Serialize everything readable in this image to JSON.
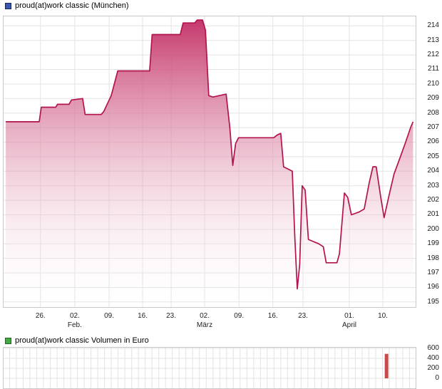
{
  "chart_data": [
    {
      "type": "area",
      "name": "price",
      "title": "proud(at)work classic (München)",
      "legend": {
        "fill": "#3c58a8",
        "border": "#16255e"
      },
      "line_color": "#b3134e",
      "fill_top_color": "#c43267",
      "ylabel": "",
      "xlabel": "",
      "ylim": [
        194.6,
        214.7
      ],
      "y_ticks": [
        195,
        196,
        197,
        198,
        199,
        200,
        201,
        202,
        203,
        204,
        205,
        206,
        207,
        208,
        209,
        210,
        211,
        212,
        213,
        214
      ],
      "x_ticks": [
        {
          "pos": 0.091,
          "label": "26.",
          "sub": ""
        },
        {
          "pos": 0.174,
          "label": "02.",
          "sub": "Feb."
        },
        {
          "pos": 0.257,
          "label": "09.",
          "sub": ""
        },
        {
          "pos": 0.338,
          "label": "16.",
          "sub": ""
        },
        {
          "pos": 0.407,
          "label": "23.",
          "sub": ""
        },
        {
          "pos": 0.488,
          "label": "02.",
          "sub": "März"
        },
        {
          "pos": 0.571,
          "label": "09.",
          "sub": ""
        },
        {
          "pos": 0.653,
          "label": "16.",
          "sub": ""
        },
        {
          "pos": 0.726,
          "label": "23.",
          "sub": ""
        },
        {
          "pos": 0.838,
          "label": "01.",
          "sub": "April"
        },
        {
          "pos": 0.919,
          "label": "10.",
          "sub": ""
        }
      ],
      "points": [
        [
          0.007,
          207.4
        ],
        [
          0.088,
          207.4
        ],
        [
          0.093,
          208.4
        ],
        [
          0.128,
          208.4
        ],
        [
          0.132,
          208.6
        ],
        [
          0.16,
          208.6
        ],
        [
          0.166,
          208.9
        ],
        [
          0.193,
          209.0
        ],
        [
          0.199,
          207.9
        ],
        [
          0.238,
          207.9
        ],
        [
          0.244,
          208.1
        ],
        [
          0.262,
          209.2
        ],
        [
          0.278,
          210.9
        ],
        [
          0.355,
          210.9
        ],
        [
          0.361,
          213.4
        ],
        [
          0.429,
          213.4
        ],
        [
          0.436,
          214.2
        ],
        [
          0.464,
          214.2
        ],
        [
          0.47,
          214.4
        ],
        [
          0.483,
          214.4
        ],
        [
          0.49,
          213.7
        ],
        [
          0.498,
          209.2
        ],
        [
          0.508,
          209.1
        ],
        [
          0.54,
          209.3
        ],
        [
          0.549,
          207.0
        ],
        [
          0.556,
          204.4
        ],
        [
          0.563,
          205.9
        ],
        [
          0.57,
          206.3
        ],
        [
          0.655,
          206.3
        ],
        [
          0.664,
          206.5
        ],
        [
          0.672,
          206.6
        ],
        [
          0.679,
          204.3
        ],
        [
          0.7,
          204.0
        ],
        [
          0.706,
          199.5
        ],
        [
          0.712,
          195.9
        ],
        [
          0.718,
          197.6
        ],
        [
          0.724,
          203.0
        ],
        [
          0.731,
          202.7
        ],
        [
          0.739,
          199.3
        ],
        [
          0.764,
          199.0
        ],
        [
          0.775,
          198.8
        ],
        [
          0.782,
          197.7
        ],
        [
          0.808,
          197.7
        ],
        [
          0.814,
          198.3
        ],
        [
          0.826,
          202.5
        ],
        [
          0.834,
          202.2
        ],
        [
          0.843,
          201.0
        ],
        [
          0.862,
          201.2
        ],
        [
          0.874,
          201.4
        ],
        [
          0.886,
          203.2
        ],
        [
          0.895,
          204.3
        ],
        [
          0.903,
          204.3
        ],
        [
          0.914,
          202.2
        ],
        [
          0.922,
          200.8
        ],
        [
          0.933,
          202.2
        ],
        [
          0.946,
          203.8
        ],
        [
          0.959,
          204.8
        ],
        [
          0.973,
          205.9
        ],
        [
          0.986,
          207.0
        ],
        [
          0.992,
          207.4
        ]
      ]
    },
    {
      "type": "bar",
      "name": "volume",
      "title": "proud(at)work classic Volumen in Euro",
      "legend": {
        "fill": "#44a944",
        "border": "#1c6b1c"
      },
      "bar_color": "#c84b4b",
      "ylim": [
        0,
        628
      ],
      "y_ticks": [
        0,
        200,
        400,
        600
      ],
      "grid_vertical_count": 61,
      "bars": [
        {
          "pos": 0.928,
          "value": 490
        }
      ]
    }
  ]
}
